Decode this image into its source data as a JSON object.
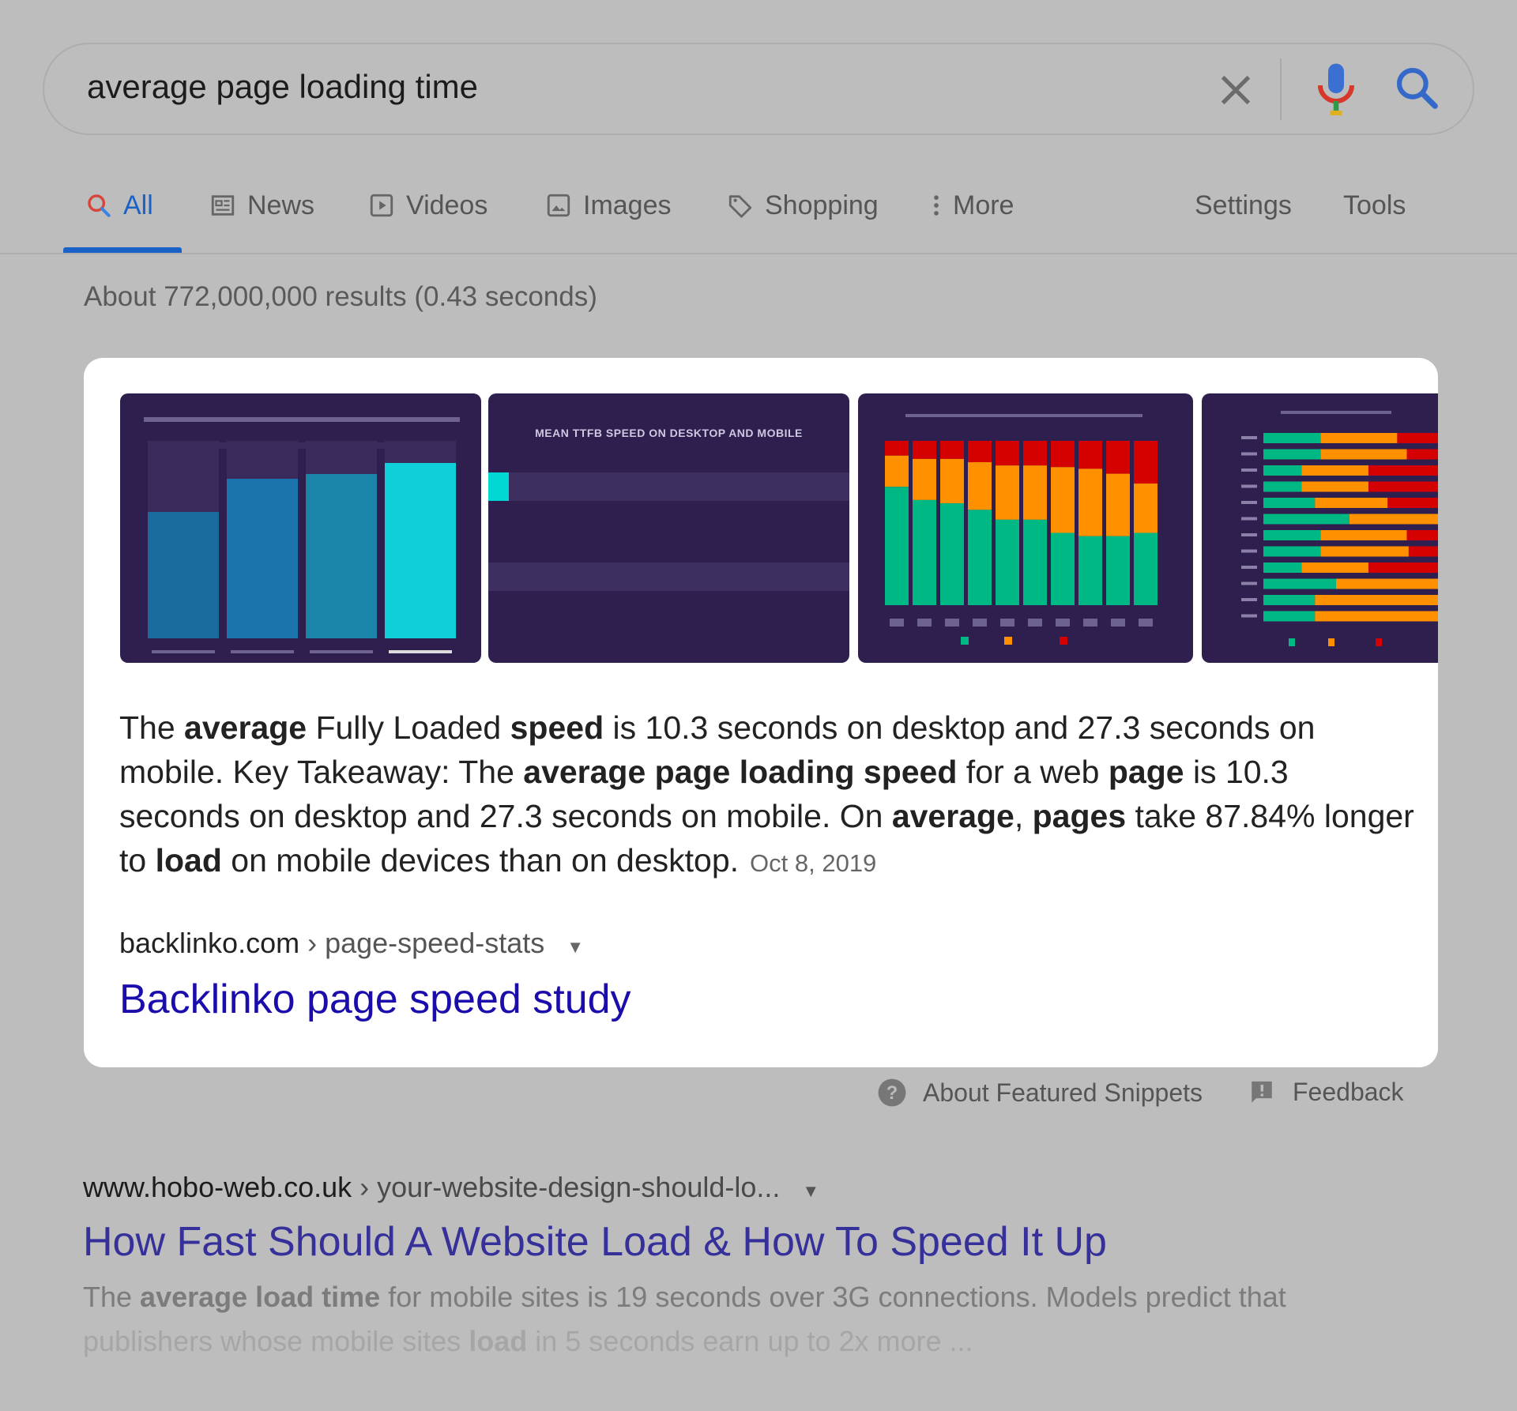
{
  "search": {
    "query": "average page loading time",
    "clear_icon": "close-icon",
    "mic_icon": "microphone-icon",
    "search_icon": "search-icon"
  },
  "tabs": [
    {
      "label": "All",
      "icon": "search-icon",
      "active": true
    },
    {
      "label": "News",
      "icon": "newspaper-icon"
    },
    {
      "label": "Videos",
      "icon": "play-icon"
    },
    {
      "label": "Images",
      "icon": "image-icon"
    },
    {
      "label": "Shopping",
      "icon": "tag-icon"
    },
    {
      "label": "More",
      "icon": "more-vertical-icon"
    }
  ],
  "tools": {
    "settings": "Settings",
    "tools": "Tools"
  },
  "stats": "About 772,000,000 results (0.43 seconds)",
  "featured": {
    "snippet": [
      {
        "t": "The ",
        "b": false
      },
      {
        "t": "average",
        "b": true
      },
      {
        "t": " Fully Loaded ",
        "b": false
      },
      {
        "t": "speed",
        "b": true
      },
      {
        "t": " is 10.3 seconds on desktop and 27.3 seconds on mobile. Key Takeaway: The ",
        "b": false
      },
      {
        "t": "average page loading speed",
        "b": true
      },
      {
        "t": " for a web ",
        "b": false
      },
      {
        "t": "page",
        "b": true
      },
      {
        "t": " is 10.3 seconds on desktop and 27.3 seconds on mobile. On ",
        "b": false
      },
      {
        "t": "average",
        "b": true
      },
      {
        "t": ", ",
        "b": false
      },
      {
        "t": "pages",
        "b": true
      },
      {
        "t": " take 87.84% longer to ",
        "b": false
      },
      {
        "t": "load",
        "b": true
      },
      {
        "t": " on mobile devices than on desktop.",
        "b": false
      }
    ],
    "date": "Oct 8, 2019",
    "domain": "backlinko.com",
    "path": " › page-speed-stats",
    "title": "Backlinko page speed study",
    "thumb_title": "MEAN TTFB SPEED ON DESKTOP AND MOBILE",
    "colors": {
      "bg": "#2e1f4e",
      "fast": "#00b884",
      "average": "#ff9100",
      "slow": "#d50000",
      "cyan": "#00d8d6"
    }
  },
  "footer": {
    "about": "About Featured Snippets",
    "feedback": "Feedback"
  },
  "result2": {
    "domain": "www.hobo-web.co.uk",
    "path": " › your-website-design-should-lo...",
    "title": "How Fast Should A Website Load & How To Speed It Up",
    "desc1": [
      {
        "t": "The ",
        "b": false
      },
      {
        "t": "average load time",
        "b": true
      },
      {
        "t": " for mobile sites is 19 seconds over 3G connections. Models predict that",
        "b": false
      }
    ],
    "desc2": [
      {
        "t": "publishers whose mobile sites ",
        "b": false
      },
      {
        "t": "load",
        "b": true
      },
      {
        "t": " in 5 seconds earn up to 2x more ...",
        "b": false
      }
    ]
  },
  "colors": {
    "accent": "#1a62c7",
    "link": "#1a0dab",
    "visited": "#35309a",
    "background": "#bdbdbd"
  }
}
